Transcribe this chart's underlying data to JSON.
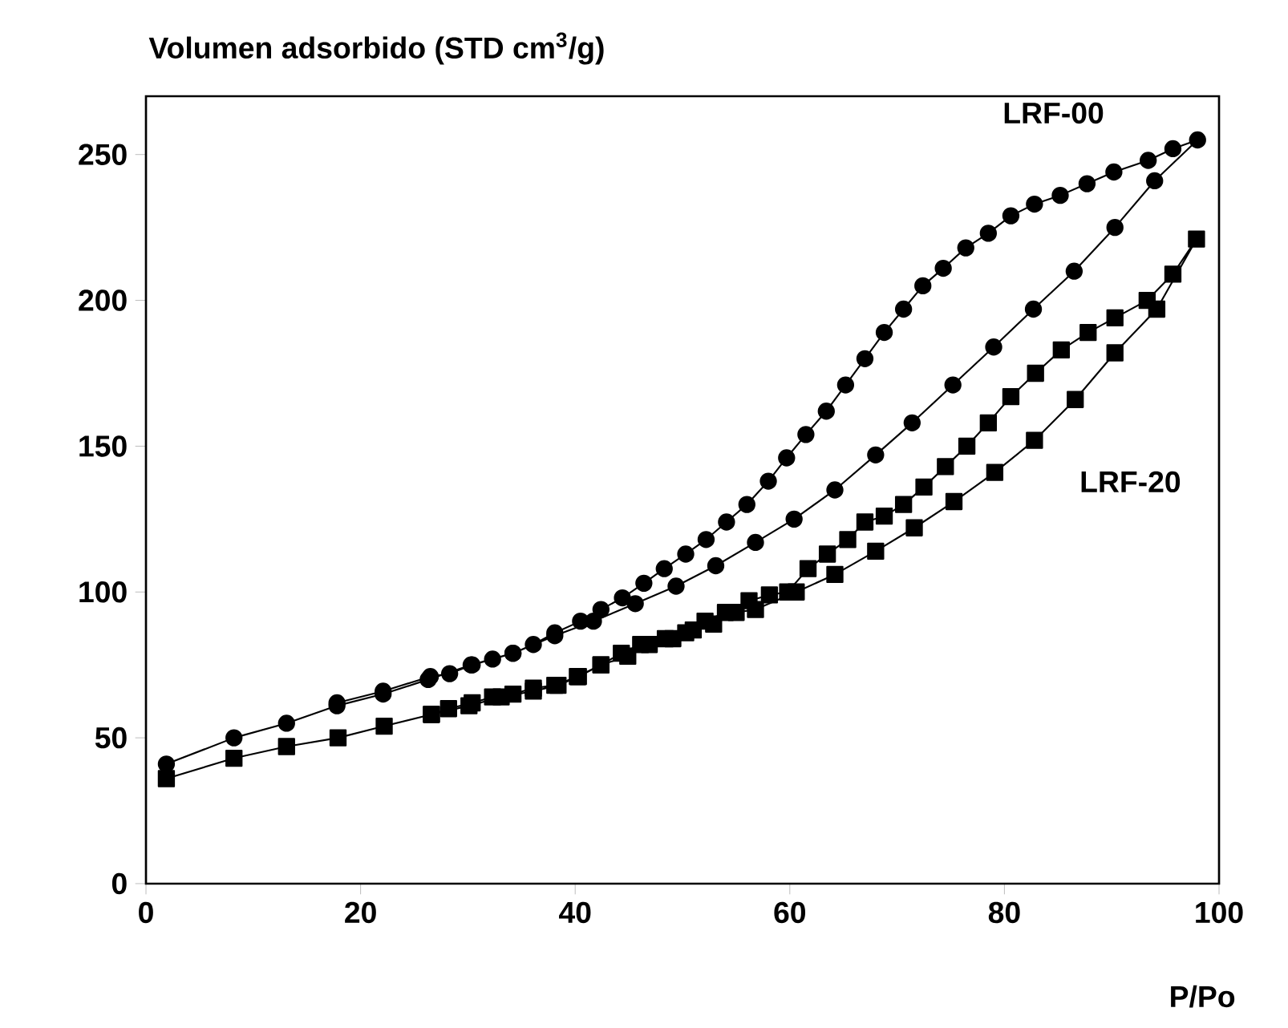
{
  "chart_data": {
    "type": "line",
    "xlabel": "P/Po",
    "ylabel": "Volumen adsorbido (STD cm$^{3}$/g)",
    "xlim": [
      0,
      100
    ],
    "ylim": [
      0,
      270
    ],
    "xticks": [
      0,
      20,
      40,
      60,
      80,
      100
    ],
    "yticks": [
      0,
      50,
      100,
      150,
      200,
      250
    ],
    "grid": false,
    "legend": false,
    "line_style": "solid",
    "series": [
      {
        "name": "LRF-00",
        "color": "#000000",
        "marker": "circle",
        "x": [
          1.9,
          8.2,
          13.1,
          17.8,
          22.1,
          26.3,
          30.3,
          34.2,
          38.1,
          41.7,
          45.6,
          49.4,
          53.1,
          56.8,
          60.4,
          64.2,
          68,
          71.4,
          75.2,
          79,
          82.7,
          86.5,
          90.3,
          94,
          98,
          95.7,
          93.4,
          90.2,
          87.7,
          85.2,
          82.8,
          80.6,
          78.5,
          76.4,
          74.3,
          72.4,
          70.6,
          68.8,
          67,
          65.2,
          63.4,
          61.5,
          59.7,
          58,
          56,
          54.1,
          52.2,
          50.3,
          48.3,
          46.4,
          44.4,
          42.4,
          40.5,
          38.1,
          36.1,
          34.2,
          32.3,
          30.4,
          28.3,
          26.5,
          22.1,
          17.8
        ],
        "values": [
          41,
          50,
          55,
          61,
          65,
          70,
          75,
          79,
          85,
          90,
          96,
          102,
          109,
          117,
          125,
          135,
          147,
          158,
          171,
          184,
          197,
          210,
          225,
          241,
          255,
          252,
          248,
          244,
          240,
          236,
          233,
          229,
          223,
          218,
          211,
          205,
          197,
          189,
          180,
          171,
          162,
          154,
          146,
          138,
          130,
          124,
          118,
          113,
          108,
          103,
          98,
          94,
          90,
          86,
          82,
          79,
          77,
          75,
          72,
          71,
          66,
          62
        ]
      },
      {
        "name": "LRF-20",
        "color": "#000000",
        "marker": "square",
        "x": [
          1.9,
          8.2,
          13.1,
          17.9,
          22.2,
          26.6,
          30.1,
          33.1,
          36.1,
          38.4,
          40.3,
          42.4,
          44.9,
          46.9,
          49.1,
          51,
          52.9,
          55,
          56.8,
          60.6,
          64.2,
          68,
          71.6,
          75.3,
          79.1,
          82.8,
          86.6,
          90.3,
          94.2,
          97.9,
          95.7,
          93.3,
          90.3,
          87.8,
          85.3,
          82.9,
          80.6,
          78.5,
          76.5,
          74.5,
          72.5,
          70.6,
          68.8,
          67,
          65.4,
          63.5,
          61.7,
          59.8,
          58.1,
          56.2,
          54,
          52.1,
          50.3,
          48.4,
          46.1,
          44.3,
          42.4,
          40.2,
          38.1,
          36.1,
          34.2,
          32.3,
          30.4,
          28.2,
          26.6
        ],
        "values": [
          36,
          43,
          47,
          50,
          54,
          58,
          61,
          64,
          66,
          68,
          71,
          75,
          78,
          82,
          84,
          87,
          89,
          93,
          94,
          100,
          106,
          114,
          122,
          131,
          141,
          152,
          166,
          182,
          197,
          221,
          209,
          200,
          194,
          189,
          183,
          175,
          167,
          158,
          150,
          143,
          136,
          130,
          126,
          124,
          118,
          113,
          108,
          100,
          99,
          97,
          93,
          90,
          86,
          84,
          82,
          79,
          75,
          71,
          68,
          67,
          65,
          64,
          62,
          60,
          58
        ]
      }
    ]
  }
}
